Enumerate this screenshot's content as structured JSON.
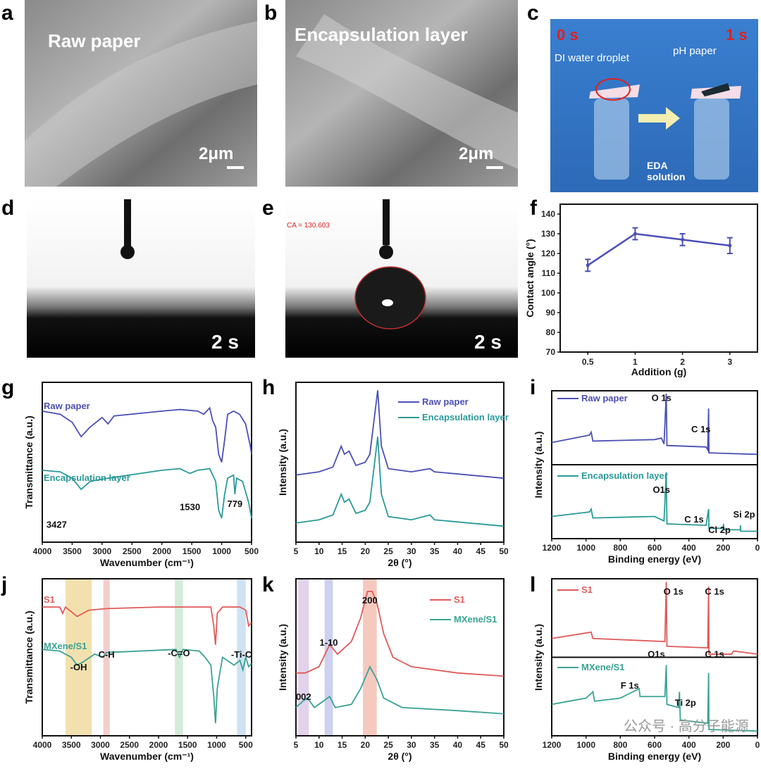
{
  "panel_letters": [
    "a",
    "b",
    "c",
    "d",
    "e",
    "f",
    "g",
    "h",
    "i",
    "j",
    "k",
    "l"
  ],
  "photos": {
    "a": {
      "label": "Raw paper",
      "scale": "2μm"
    },
    "b": {
      "label": "Encapsulation layer",
      "scale": "2μm"
    },
    "c": {
      "t0": "0 s",
      "t1": "1 s",
      "droplet": "DI water droplet",
      "ph": "pH  paper",
      "eda1": "EDA",
      "eda2": "solution"
    },
    "d": {
      "time": "2 s"
    },
    "e": {
      "time": "2 s",
      "ca": "CA = 130.603"
    }
  },
  "watermark": "公众号 · 高分子能源",
  "colors": {
    "blue": "#4b4fb5",
    "teal": "#2a9a98",
    "red": "#e05a5a",
    "mx": "#3aa393"
  },
  "chart_data": [
    {
      "id": "f",
      "type": "line",
      "xlabel": "Addition (g)",
      "ylabel": "Contact angle (°)",
      "categories": [
        "0.5",
        "1",
        "2",
        "3"
      ],
      "values": [
        114,
        130,
        127,
        124
      ],
      "errors": [
        3,
        3,
        3,
        4
      ],
      "ylim": [
        70,
        145
      ],
      "yticks": [
        70,
        80,
        90,
        100,
        110,
        120,
        130,
        140
      ]
    },
    {
      "id": "g",
      "type": "line",
      "xlabel": "Wavenumber (cm⁻¹)",
      "ylabel": "Transmittance (a.u.)",
      "xlim": [
        4000,
        500
      ],
      "xticks": [
        4000,
        3500,
        3000,
        2500,
        2000,
        1500,
        1000,
        500
      ],
      "ylim": [
        0,
        100
      ],
      "series": [
        {
          "name": "Raw paper",
          "color": "#4b4fb5",
          "points": [
            [
              4000,
              82
            ],
            [
              3700,
              80
            ],
            [
              3500,
              75
            ],
            [
              3350,
              66
            ],
            [
              3200,
              72
            ],
            [
              3000,
              78
            ],
            [
              2900,
              74
            ],
            [
              2800,
              79
            ],
            [
              2000,
              82
            ],
            [
              1700,
              83
            ],
            [
              1400,
              82
            ],
            [
              1300,
              80
            ],
            [
              1200,
              84
            ],
            [
              1150,
              76
            ],
            [
              1100,
              72
            ],
            [
              1050,
              55
            ],
            [
              1000,
              50
            ],
            [
              950,
              64
            ],
            [
              900,
              80
            ],
            [
              800,
              82
            ],
            [
              700,
              80
            ],
            [
              600,
              74
            ],
            [
              520,
              60
            ],
            [
              500,
              55
            ]
          ]
        },
        {
          "name": "Encapsulation layer",
          "color": "#2a9a98",
          "points": [
            [
              4000,
              45
            ],
            [
              3700,
              44
            ],
            [
              3500,
              40
            ],
            [
              3350,
              33
            ],
            [
              3200,
              38
            ],
            [
              2900,
              40
            ],
            [
              2000,
              45
            ],
            [
              1700,
              46
            ],
            [
              1530,
              43
            ],
            [
              1400,
              45
            ],
            [
              1200,
              46
            ],
            [
              1100,
              38
            ],
            [
              1050,
              20
            ],
            [
              1000,
              15
            ],
            [
              950,
              30
            ],
            [
              900,
              40
            ],
            [
              800,
              42
            ],
            [
              779,
              30
            ],
            [
              750,
              40
            ],
            [
              650,
              38
            ],
            [
              550,
              25
            ],
            [
              500,
              15
            ]
          ]
        }
      ],
      "annotations": [
        "3427",
        "1530",
        "779"
      ]
    },
    {
      "id": "h",
      "type": "line",
      "xlabel": "2θ (°)",
      "ylabel": "Intensity (a.u.)",
      "xlim": [
        5,
        50
      ],
      "xticks": [
        5,
        10,
        15,
        20,
        25,
        30,
        35,
        40,
        45,
        50
      ],
      "ylim": [
        0,
        100
      ],
      "series": [
        {
          "name": "Raw paper",
          "color": "#4b4fb5",
          "points": [
            [
              5,
              42
            ],
            [
              10,
              44
            ],
            [
              13,
              47
            ],
            [
              14.8,
              60
            ],
            [
              15.5,
              55
            ],
            [
              16.5,
              57
            ],
            [
              18,
              48
            ],
            [
              20,
              50
            ],
            [
              21,
              55
            ],
            [
              22.7,
              95
            ],
            [
              23.5,
              60
            ],
            [
              25,
              46
            ],
            [
              30,
              44
            ],
            [
              34,
              46
            ],
            [
              35,
              44
            ],
            [
              50,
              40
            ]
          ]
        },
        {
          "name": "Encapsulation layer",
          "color": "#2a9a98",
          "points": [
            [
              5,
              12
            ],
            [
              10,
              14
            ],
            [
              13,
              17
            ],
            [
              14.8,
              30
            ],
            [
              15.5,
              25
            ],
            [
              16.5,
              27
            ],
            [
              18,
              18
            ],
            [
              20,
              20
            ],
            [
              21,
              25
            ],
            [
              22.7,
              66
            ],
            [
              23.5,
              30
            ],
            [
              25,
              16
            ],
            [
              30,
              14
            ],
            [
              34,
              17
            ],
            [
              35,
              14
            ],
            [
              50,
              10
            ]
          ]
        }
      ]
    },
    {
      "id": "i",
      "type": "line",
      "xlabel": "Binding energy (eV)",
      "ylabel": "Intensity (a.u.)",
      "xlim": [
        1200,
        0
      ],
      "xticks": [
        1200,
        1000,
        800,
        600,
        400,
        200,
        0
      ],
      "ylim": [
        0,
        100
      ],
      "series": [
        {
          "name": "Raw paper",
          "color": "#4b4fb5",
          "points": [
            [
              1200,
              65
            ],
            [
              980,
              70
            ],
            [
              970,
              72
            ],
            [
              960,
              66
            ],
            [
              600,
              67
            ],
            [
              560,
              68
            ],
            [
              545,
              64
            ],
            [
              532,
              98
            ],
            [
              528,
              63
            ],
            [
              300,
              62
            ],
            [
              290,
              60
            ],
            [
              285,
              88
            ],
            [
              283,
              58
            ],
            [
              0,
              57
            ]
          ]
        },
        {
          "name": "Encapsulation layer",
          "color": "#2a9a98",
          "points": [
            [
              1200,
              15
            ],
            [
              980,
              18
            ],
            [
              970,
              20
            ],
            [
              960,
              14
            ],
            [
              600,
              15
            ],
            [
              545,
              12
            ],
            [
              532,
              45
            ],
            [
              528,
              10
            ],
            [
              300,
              9
            ],
            [
              285,
              20
            ],
            [
              283,
              7
            ],
            [
              200,
              7
            ],
            [
              198,
              10
            ],
            [
              196,
              6
            ],
            [
              100,
              6
            ],
            [
              99,
              9
            ],
            [
              98,
              5
            ],
            [
              0,
              5
            ]
          ]
        }
      ],
      "annotations": [
        "O 1s",
        "C 1s",
        "O1s",
        "C 1s",
        "Cl 2p",
        "Si 2p"
      ]
    },
    {
      "id": "j",
      "type": "line",
      "xlabel": "Wavenumber (cm⁻¹)",
      "ylabel": "Transmittance (a.u.)",
      "xlim": [
        4000,
        400
      ],
      "xticks": [
        4000,
        3500,
        3000,
        2500,
        2000,
        1500,
        1000,
        500
      ],
      "ylim": [
        0,
        100
      ],
      "bands": [
        {
          "from": 3600,
          "to": 3150,
          "color": "#f0dca0",
          "label": "-OH"
        },
        {
          "from": 2950,
          "to": 2840,
          "color": "#f2c4c4",
          "label": "C-H"
        },
        {
          "from": 1720,
          "to": 1580,
          "color": "#cbe9d2",
          "label": "-C=O"
        },
        {
          "from": 650,
          "to": 500,
          "color": "#c5ddf0",
          "label": "-Ti-C"
        }
      ],
      "series": [
        {
          "name": "S1",
          "color": "#e05a5a",
          "points": [
            [
              4000,
              82
            ],
            [
              3700,
              82
            ],
            [
              3650,
              78
            ],
            [
              3600,
              82
            ],
            [
              3400,
              76
            ],
            [
              3200,
              80
            ],
            [
              2900,
              81
            ],
            [
              2000,
              82
            ],
            [
              1500,
              82
            ],
            [
              1100,
              82
            ],
            [
              1050,
              70
            ],
            [
              1020,
              58
            ],
            [
              990,
              78
            ],
            [
              900,
              82
            ],
            [
              600,
              82
            ],
            [
              500,
              80
            ],
            [
              450,
              70
            ],
            [
              400,
              72
            ]
          ]
        },
        {
          "name": "MXene/S1",
          "color": "#3aa393",
          "points": [
            [
              4000,
              55
            ],
            [
              3700,
              54
            ],
            [
              3500,
              50
            ],
            [
              3400,
              45
            ],
            [
              3300,
              47
            ],
            [
              3100,
              52
            ],
            [
              2950,
              50
            ],
            [
              2900,
              53
            ],
            [
              1700,
              55
            ],
            [
              1640,
              50
            ],
            [
              1580,
              55
            ],
            [
              1300,
              54
            ],
            [
              1200,
              50
            ],
            [
              1100,
              45
            ],
            [
              1050,
              25
            ],
            [
              1020,
              8
            ],
            [
              990,
              30
            ],
            [
              900,
              50
            ],
            [
              700,
              45
            ],
            [
              600,
              48
            ],
            [
              550,
              42
            ],
            [
              500,
              50
            ],
            [
              450,
              44
            ],
            [
              400,
              46
            ]
          ]
        }
      ]
    },
    {
      "id": "k",
      "type": "line",
      "xlabel": "2θ (°)",
      "ylabel": "Intensity (a.u.)",
      "xlim": [
        5,
        50
      ],
      "xticks": [
        5,
        10,
        15,
        20,
        25,
        30,
        35,
        40,
        45,
        50
      ],
      "ylim": [
        0,
        100
      ],
      "bands": [
        {
          "from": 5.5,
          "to": 7.8,
          "color": "#dccbe8",
          "label": "002"
        },
        {
          "from": 11.2,
          "to": 13,
          "color": "#c6c8ec",
          "label": "1-10"
        },
        {
          "from": 19.5,
          "to": 22.5,
          "color": "#f4c0b4",
          "label": "200"
        }
      ],
      "series": [
        {
          "name": "S1",
          "color": "#e05a5a",
          "points": [
            [
              5,
              40
            ],
            [
              7,
              40
            ],
            [
              10,
              44
            ],
            [
              12.3,
              58
            ],
            [
              14,
              52
            ],
            [
              17,
              60
            ],
            [
              19,
              75
            ],
            [
              20.5,
              92
            ],
            [
              21.5,
              92
            ],
            [
              22.5,
              85
            ],
            [
              24,
              65
            ],
            [
              26,
              50
            ],
            [
              30,
              44
            ],
            [
              40,
              40
            ],
            [
              50,
              38
            ]
          ]
        },
        {
          "name": "MXene/S1",
          "color": "#3aa393",
          "points": [
            [
              5,
              18
            ],
            [
              6.5,
              22
            ],
            [
              7.5,
              24
            ],
            [
              9,
              18
            ],
            [
              12.3,
              25
            ],
            [
              13.5,
              18
            ],
            [
              17,
              20
            ],
            [
              19,
              30
            ],
            [
              21,
              44
            ],
            [
              22.5,
              36
            ],
            [
              24,
              24
            ],
            [
              28,
              18
            ],
            [
              40,
              16
            ],
            [
              50,
              14
            ]
          ]
        }
      ]
    },
    {
      "id": "l",
      "type": "line",
      "xlabel": "Binding energy (eV)",
      "ylabel": "Intensity (a.u.)",
      "xlim": [
        1200,
        0
      ],
      "xticks": [
        1200,
        1000,
        800,
        600,
        400,
        200,
        0
      ],
      "ylim": [
        0,
        100
      ],
      "series": [
        {
          "name": "S1",
          "color": "#e05a5a",
          "points": [
            [
              1200,
              62
            ],
            [
              970,
              66
            ],
            [
              960,
              62
            ],
            [
              540,
              60
            ],
            [
              532,
              98
            ],
            [
              528,
              57
            ],
            [
              290,
              56
            ],
            [
              285,
              95
            ],
            [
              283,
              52
            ],
            [
              150,
              52
            ],
            [
              140,
              54
            ],
            [
              0,
              52
            ]
          ]
        },
        {
          "name": "MXene/S1",
          "color": "#3aa393",
          "points": [
            [
              1200,
              20
            ],
            [
              1100,
              22
            ],
            [
              1000,
              24
            ],
            [
              960,
              28
            ],
            [
              950,
              22
            ],
            [
              800,
              24
            ],
            [
              690,
              30
            ],
            [
              685,
              25
            ],
            [
              540,
              25
            ],
            [
              532,
              45
            ],
            [
              528,
              20
            ],
            [
              460,
              18
            ],
            [
              455,
              28
            ],
            [
              450,
              10
            ],
            [
              290,
              8
            ],
            [
              285,
              40
            ],
            [
              283,
              4
            ],
            [
              0,
              3
            ]
          ]
        }
      ],
      "annotations": [
        "O 1s",
        "C 1s",
        "O1s",
        "F 1s",
        "Ti 2p",
        "C 1s"
      ]
    }
  ]
}
